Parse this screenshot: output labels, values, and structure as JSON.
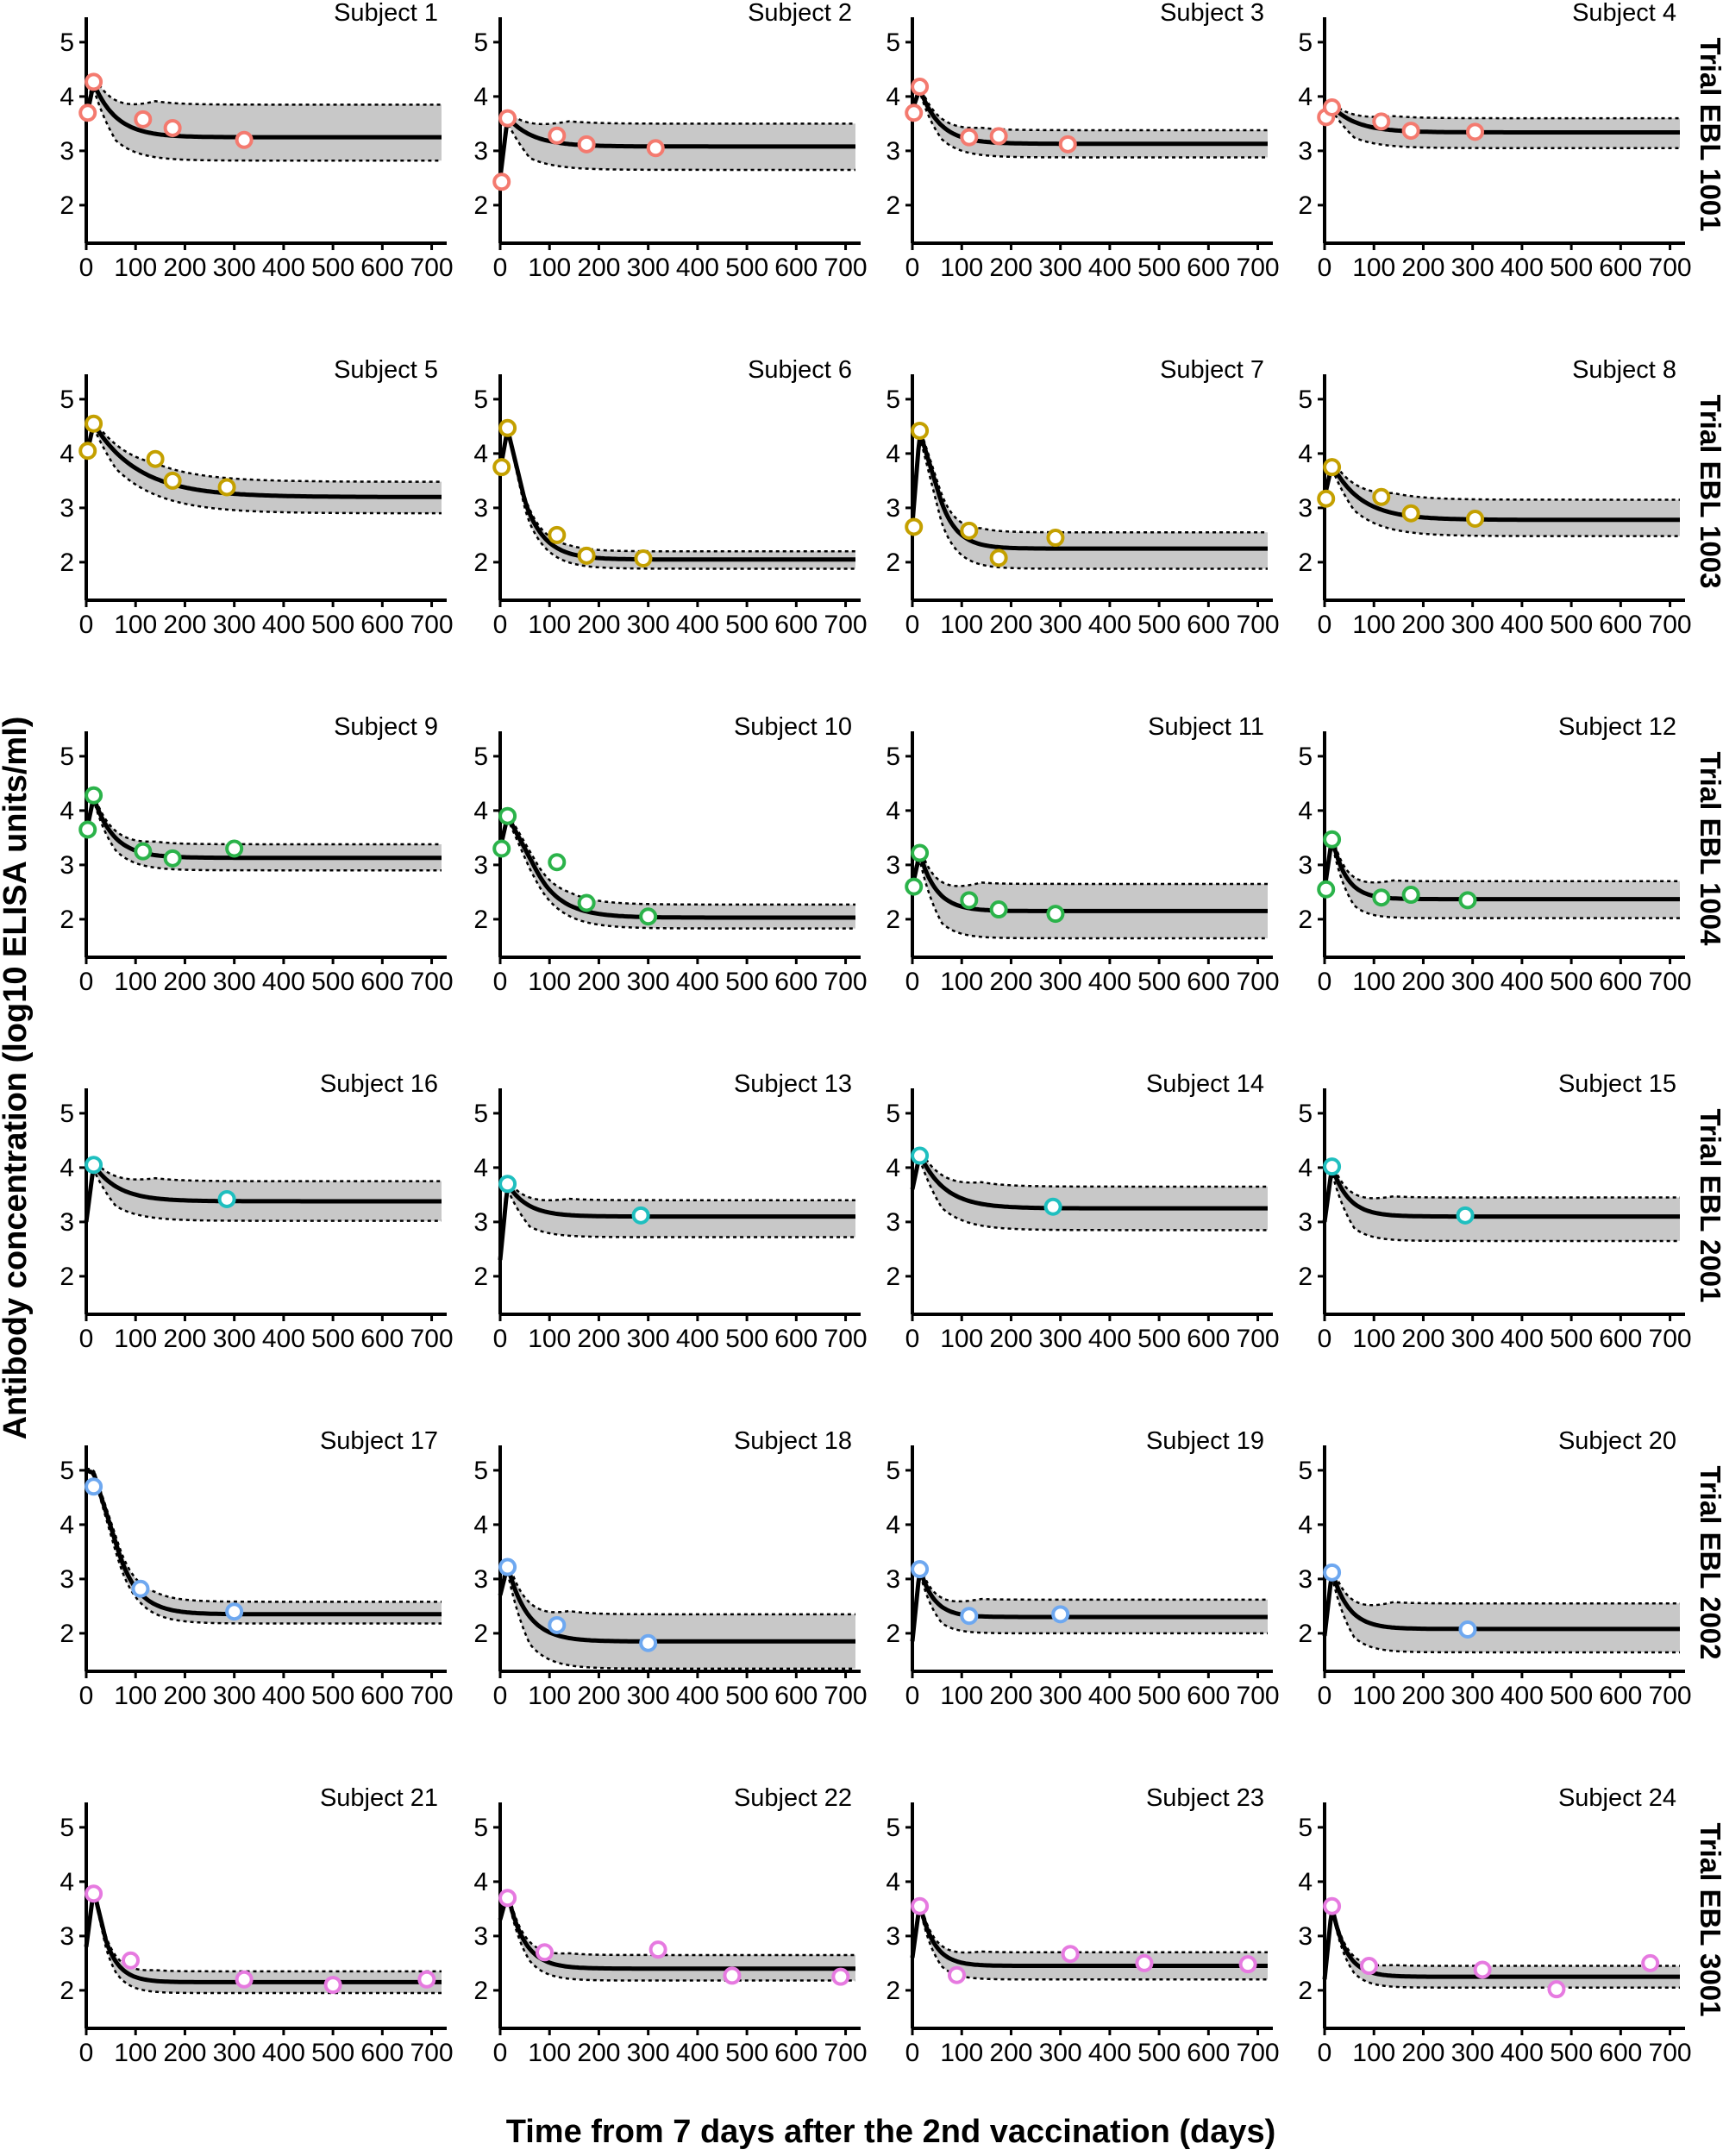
{
  "figure": {
    "xlabel": "Time from 7 days after the 2nd vaccination (days)",
    "ylabel": "Antibody concentration (log10 ELISA units/ml)"
  },
  "chart_data": {
    "type": "line",
    "description_units": "x in days, y in log10 ELISA units/ml",
    "xlim": [
      0,
      720
    ],
    "ylim": [
      1.3,
      5.3
    ],
    "xticks": [
      0,
      100,
      200,
      300,
      400,
      500,
      600,
      700
    ],
    "yticks": [
      2,
      3,
      4,
      5
    ],
    "band": "shaded 95% prediction interval bounded by dotted lines around solid fitted curve",
    "trials": [
      {
        "label": "Trial EBL 1001",
        "color": "#f47a6f",
        "subjects": [
          {
            "title": "Subject 1",
            "points": [
              [
                3,
                3.7
              ],
              [
                15,
                4.27
              ],
              [
                115,
                3.58
              ],
              [
                175,
                3.42
              ],
              [
                320,
                3.2
              ]
            ],
            "fit": {
              "start": 3.6,
              "peak": 4.25,
              "plateau": 3.25,
              "k": 0.022
            },
            "band": {
              "upper": 3.85,
              "lower": 2.82
            }
          },
          {
            "title": "Subject 2",
            "points": [
              [
                3,
                2.43
              ],
              [
                15,
                3.6
              ],
              [
                115,
                3.28
              ],
              [
                175,
                3.12
              ],
              [
                315,
                3.05
              ]
            ],
            "fit": {
              "start": 2.5,
              "peak": 3.62,
              "plateau": 3.08,
              "k": 0.02
            },
            "band": {
              "upper": 3.5,
              "lower": 2.65
            }
          },
          {
            "title": "Subject 3",
            "points": [
              [
                3,
                3.7
              ],
              [
                15,
                4.18
              ],
              [
                115,
                3.25
              ],
              [
                175,
                3.27
              ],
              [
                315,
                3.12
              ]
            ],
            "fit": {
              "start": 3.75,
              "peak": 4.15,
              "plateau": 3.13,
              "k": 0.025
            },
            "band": {
              "upper": 3.38,
              "lower": 2.88
            }
          },
          {
            "title": "Subject 4",
            "points": [
              [
                3,
                3.62
              ],
              [
                15,
                3.8
              ],
              [
                115,
                3.54
              ],
              [
                175,
                3.37
              ],
              [
                305,
                3.35
              ]
            ],
            "fit": {
              "start": 3.65,
              "peak": 3.82,
              "plateau": 3.34,
              "k": 0.02
            },
            "band": {
              "upper": 3.6,
              "lower": 3.05
            }
          }
        ]
      },
      {
        "label": "Trial EBL 1003",
        "color": "#c4a000",
        "subjects": [
          {
            "title": "Subject 5",
            "points": [
              [
                3,
                4.05
              ],
              [
                15,
                4.55
              ],
              [
                140,
                3.9
              ],
              [
                175,
                3.5
              ],
              [
                285,
                3.38
              ]
            ],
            "fit": {
              "start": 3.95,
              "peak": 4.55,
              "plateau": 3.2,
              "k": 0.011
            },
            "band": {
              "upper": 3.48,
              "lower": 2.9
            }
          },
          {
            "title": "Subject 6",
            "points": [
              [
                3,
                3.75
              ],
              [
                15,
                4.47
              ],
              [
                115,
                2.5
              ],
              [
                175,
                2.12
              ],
              [
                290,
                2.07
              ]
            ],
            "fit": {
              "start": 3.7,
              "peak": 4.45,
              "plateau": 2.05,
              "k": 0.025,
              "delay": 35
            },
            "band": {
              "upper": 2.2,
              "lower": 1.88
            }
          },
          {
            "title": "Subject 7",
            "points": [
              [
                3,
                2.65
              ],
              [
                15,
                4.42
              ],
              [
                115,
                2.58
              ],
              [
                175,
                2.08
              ],
              [
                290,
                2.45
              ]
            ],
            "fit": {
              "start": 2.7,
              "peak": 4.4,
              "plateau": 2.25,
              "k": 0.03,
              "delay": 40
            },
            "band": {
              "upper": 2.55,
              "lower": 1.88
            }
          },
          {
            "title": "Subject 8",
            "points": [
              [
                3,
                3.17
              ],
              [
                15,
                3.75
              ],
              [
                115,
                3.2
              ],
              [
                175,
                2.9
              ],
              [
                305,
                2.8
              ]
            ],
            "fit": {
              "start": 3.2,
              "peak": 3.8,
              "plateau": 2.78,
              "k": 0.017
            },
            "band": {
              "upper": 3.15,
              "lower": 2.48
            }
          }
        ]
      },
      {
        "label": "Trial EBL 1004",
        "color": "#2bb34a",
        "subjects": [
          {
            "title": "Subject 9",
            "points": [
              [
                3,
                3.65
              ],
              [
                15,
                4.28
              ],
              [
                115,
                3.25
              ],
              [
                175,
                3.12
              ],
              [
                300,
                3.3
              ]
            ],
            "fit": {
              "start": 3.6,
              "peak": 4.25,
              "plateau": 3.13,
              "k": 0.025
            },
            "band": {
              "upper": 3.38,
              "lower": 2.9
            }
          },
          {
            "title": "Subject 10",
            "points": [
              [
                3,
                3.3
              ],
              [
                15,
                3.9
              ],
              [
                115,
                3.05
              ],
              [
                175,
                2.3
              ],
              [
                300,
                2.05
              ]
            ],
            "fit": {
              "start": 3.3,
              "peak": 3.9,
              "plateau": 2.03,
              "k": 0.02,
              "delay": 60
            },
            "band": {
              "upper": 2.27,
              "lower": 1.83
            }
          },
          {
            "title": "Subject 11",
            "points": [
              [
                3,
                2.6
              ],
              [
                15,
                3.22
              ],
              [
                115,
                2.35
              ],
              [
                175,
                2.18
              ],
              [
                290,
                2.1
              ]
            ],
            "fit": {
              "start": 2.6,
              "peak": 3.22,
              "plateau": 2.15,
              "k": 0.03
            },
            "band": {
              "upper": 2.65,
              "lower": 1.65
            }
          },
          {
            "title": "Subject 12",
            "points": [
              [
                3,
                2.55
              ],
              [
                15,
                3.47
              ],
              [
                115,
                2.4
              ],
              [
                175,
                2.45
              ],
              [
                290,
                2.35
              ]
            ],
            "fit": {
              "start": 2.55,
              "peak": 3.5,
              "plateau": 2.37,
              "k": 0.035
            },
            "band": {
              "upper": 2.7,
              "lower": 2.02
            }
          }
        ]
      },
      {
        "label": "Trial EBL 2001",
        "color": "#1fbfbf",
        "subjects": [
          {
            "title": "Subject 16",
            "points": [
              [
                15,
                4.05
              ],
              [
                285,
                3.42
              ]
            ],
            "fit": {
              "start": 3.0,
              "peak": 4.05,
              "plateau": 3.38,
              "k": 0.02
            },
            "band": {
              "upper": 3.75,
              "lower": 3.02
            }
          },
          {
            "title": "Subject 13",
            "points": [
              [
                15,
                3.7
              ],
              [
                285,
                3.12
              ]
            ],
            "fit": {
              "start": 2.3,
              "peak": 3.7,
              "plateau": 3.1,
              "k": 0.025
            },
            "band": {
              "upper": 3.4,
              "lower": 2.72
            }
          },
          {
            "title": "Subject 14",
            "points": [
              [
                15,
                4.22
              ],
              [
                285,
                3.28
              ]
            ],
            "fit": {
              "start": 3.6,
              "peak": 4.25,
              "plateau": 3.25,
              "k": 0.02
            },
            "band": {
              "upper": 3.65,
              "lower": 2.85
            }
          },
          {
            "title": "Subject 15",
            "points": [
              [
                15,
                4.02
              ],
              [
                285,
                3.12
              ]
            ],
            "fit": {
              "start": 3.0,
              "peak": 4.02,
              "plateau": 3.1,
              "k": 0.03
            },
            "band": {
              "upper": 3.45,
              "lower": 2.65
            }
          }
        ]
      },
      {
        "label": "Trial EBL 2002",
        "color": "#6ea8f0",
        "subjects": [
          {
            "title": "Subject 17",
            "points": [
              [
                15,
                4.7
              ],
              [
                110,
                2.82
              ],
              [
                300,
                2.4
              ]
            ],
            "fit": {
              "start": 5.0,
              "peak": 4.95,
              "plateau": 2.35,
              "k": 0.025,
              "delay": 50
            },
            "band": {
              "upper": 2.58,
              "lower": 2.18
            }
          },
          {
            "title": "Subject 18",
            "points": [
              [
                15,
                3.22
              ],
              [
                115,
                2.15
              ],
              [
                300,
                1.82
              ]
            ],
            "fit": {
              "start": 2.7,
              "peak": 3.25,
              "plateau": 1.85,
              "k": 0.025
            },
            "band": {
              "upper": 2.35,
              "lower": 1.35
            }
          },
          {
            "title": "Subject 19",
            "points": [
              [
                15,
                3.18
              ],
              [
                115,
                2.32
              ],
              [
                300,
                2.35
              ]
            ],
            "fit": {
              "start": 1.85,
              "peak": 3.2,
              "plateau": 2.3,
              "k": 0.035
            },
            "band": {
              "upper": 2.62,
              "lower": 2.0
            }
          },
          {
            "title": "Subject 20",
            "points": [
              [
                15,
                3.12
              ],
              [
                290,
                2.07
              ]
            ],
            "fit": {
              "start": 1.95,
              "peak": 3.15,
              "plateau": 2.08,
              "k": 0.03
            },
            "band": {
              "upper": 2.55,
              "lower": 1.65
            }
          }
        ]
      },
      {
        "label": "Trial EBL 3001",
        "color": "#e67ae0",
        "subjects": [
          {
            "title": "Subject 21",
            "points": [
              [
                15,
                3.78
              ],
              [
                90,
                2.55
              ],
              [
                320,
                2.2
              ],
              [
                500,
                2.1
              ],
              [
                690,
                2.2
              ]
            ],
            "fit": {
              "start": 2.8,
              "peak": 3.85,
              "plateau": 2.15,
              "k": 0.035,
              "delay": 25
            },
            "band": {
              "upper": 2.35,
              "lower": 1.95
            }
          },
          {
            "title": "Subject 22",
            "points": [
              [
                15,
                3.7
              ],
              [
                90,
                2.7
              ],
              [
                320,
                2.75
              ],
              [
                470,
                2.27
              ],
              [
                690,
                2.25
              ]
            ],
            "fit": {
              "start": 3.3,
              "peak": 3.8,
              "plateau": 2.4,
              "k": 0.03
            },
            "band": {
              "upper": 2.65,
              "lower": 2.18
            }
          },
          {
            "title": "Subject 23",
            "points": [
              [
                15,
                3.55
              ],
              [
                90,
                2.28
              ],
              [
                320,
                2.67
              ],
              [
                470,
                2.5
              ],
              [
                680,
                2.48
              ]
            ],
            "fit": {
              "start": 2.6,
              "peak": 3.6,
              "plateau": 2.45,
              "k": 0.035
            },
            "band": {
              "upper": 2.7,
              "lower": 2.2
            }
          },
          {
            "title": "Subject 24",
            "points": [
              [
                15,
                3.55
              ],
              [
                90,
                2.45
              ],
              [
                320,
                2.38
              ],
              [
                470,
                2.02
              ],
              [
                660,
                2.5
              ]
            ],
            "fit": {
              "start": 2.2,
              "peak": 3.55,
              "plateau": 2.25,
              "k": 0.035
            },
            "band": {
              "upper": 2.45,
              "lower": 2.05
            }
          }
        ]
      }
    ]
  }
}
